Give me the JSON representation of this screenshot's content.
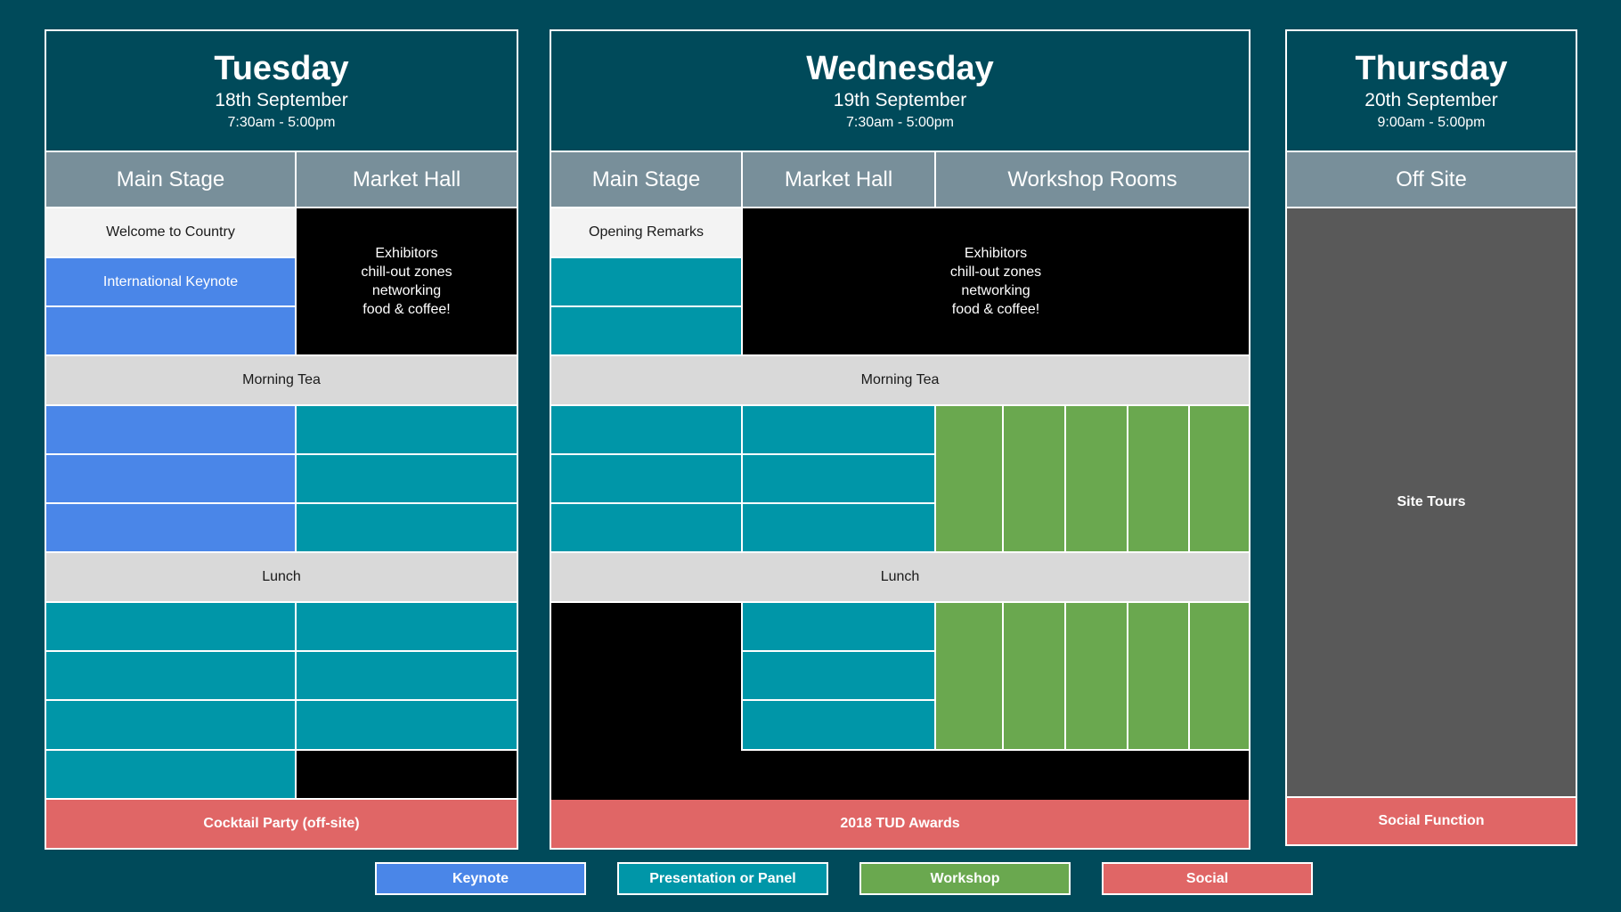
{
  "tuesday": {
    "day": "Tuesday",
    "date": "18th September",
    "time": "7:30am - 5:00pm",
    "venues": [
      "Main Stage",
      "Market Hall"
    ],
    "welcome": "Welcome to Country",
    "keynote": "International Keynote",
    "market_block": "Exhibitors\nchill-out zones\nnetworking\nfood & coffee!",
    "morning_tea": "Morning Tea",
    "lunch": "Lunch",
    "social": "Cocktail Party (off-site)"
  },
  "wednesday": {
    "day": "Wednesday",
    "date": "19th September",
    "time": "7:30am - 5:00pm",
    "venues": [
      "Main Stage",
      "Market Hall",
      "Workshop Rooms"
    ],
    "opening": "Opening Remarks",
    "market_block": "Exhibitors\nchill-out zones\nnetworking\nfood & coffee!",
    "morning_tea": "Morning Tea",
    "lunch": "Lunch",
    "social": "2018 TUD Awards"
  },
  "thursday": {
    "day": "Thursday",
    "date": "20th September",
    "time": "9:00am - 5:00pm",
    "venues": [
      "Off Site"
    ],
    "tours": "Site Tours",
    "social": "Social Function"
  },
  "legend": [
    "Keynote",
    "Presentation or Panel",
    "Workshop",
    "Social"
  ],
  "colors": {
    "background": "#004a5a",
    "keynote": "#4a86e8",
    "presentation": "#0096a8",
    "workshop": "#6aa84f",
    "social": "#e06666",
    "venue_header": "#788f9a",
    "break": "#d9d9d9",
    "exhibitors": "#000000",
    "off_site": "#595959"
  }
}
